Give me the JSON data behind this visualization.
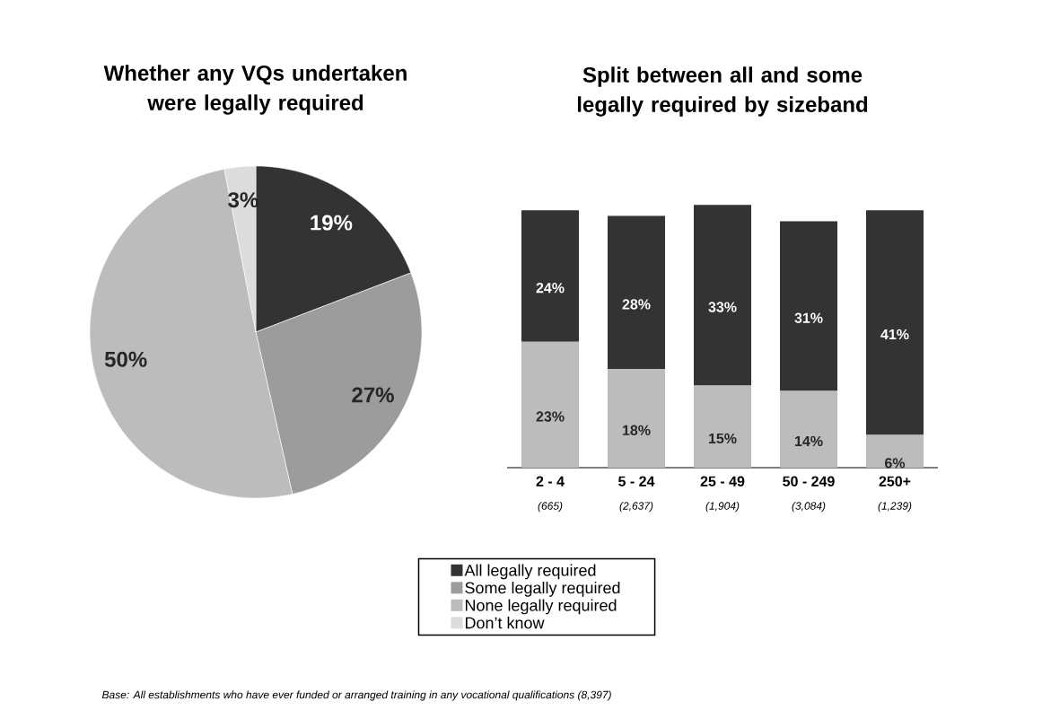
{
  "chart_data": [
    {
      "type": "pie",
      "title": "Whether any VQs undertaken were legally required",
      "categories": [
        "All legally required",
        "Some legally required",
        "None legally required",
        "Don’t know"
      ],
      "values": [
        19,
        27,
        50,
        3
      ],
      "colors": [
        "#333333",
        "#9c9c9c",
        "#bcbcbc",
        "#dcdcdc"
      ],
      "value_labels": [
        "19%",
        "27%",
        "50%",
        "3%"
      ],
      "legend": "bottom",
      "annotations": [
        "Base: All establishments who have ever funded or arranged training in any vocational qualifications (8,397)"
      ]
    },
    {
      "type": "bar",
      "title": "Split between all and some legally required by sizeband",
      "categories": [
        "2 - 4",
        "5 - 24",
        "25 - 49",
        "50 - 249",
        "250+"
      ],
      "stacked": true,
      "series": [
        {
          "color": "#bcbcbc",
          "values": [
            23,
            18,
            15,
            14,
            6
          ],
          "value_labels": [
            "23%",
            "18%",
            "15%",
            "14%",
            "6%"
          ]
        },
        {
          "color": "#333333",
          "values": [
            24,
            28,
            33,
            31,
            41
          ],
          "value_labels": [
            "24%",
            "28%",
            "33%",
            "31%",
            "41%"
          ]
        }
      ],
      "annotations": [
        "(665)",
        "(2,637)",
        "(1,904)",
        "(3,084)",
        "(1,239)"
      ]
    }
  ]
}
